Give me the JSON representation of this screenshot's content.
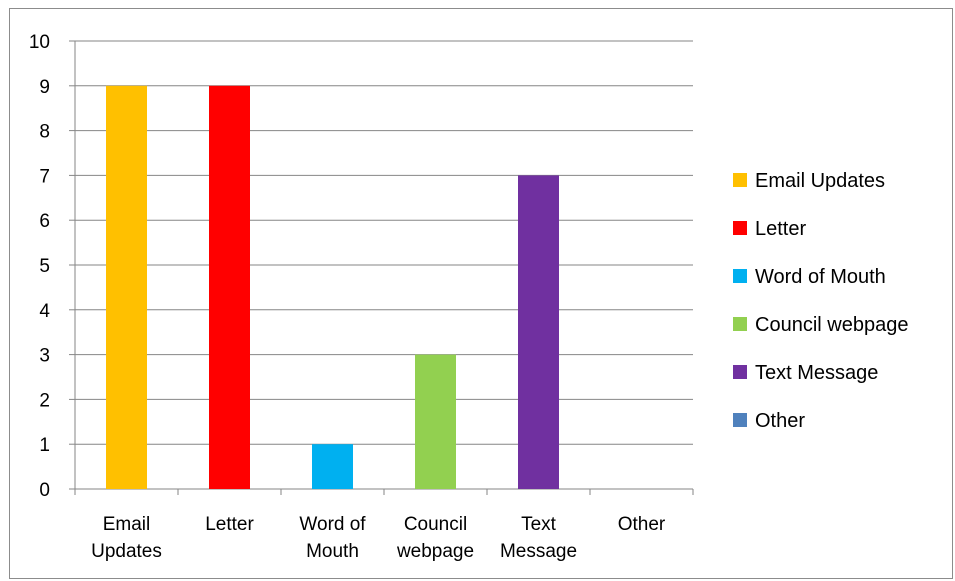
{
  "chart_data": {
    "type": "bar",
    "categories": [
      [
        "Email",
        "Updates"
      ],
      [
        "Letter"
      ],
      [
        "Word of",
        "Mouth"
      ],
      [
        "Council",
        "webpage"
      ],
      [
        "Text",
        "Message"
      ],
      [
        "Other"
      ]
    ],
    "values": [
      9,
      9,
      1,
      3,
      7,
      0
    ],
    "colors": [
      "#FFC000",
      "#FF0000",
      "#00B0F0",
      "#92D050",
      "#7030A0",
      "#4F81BD"
    ],
    "ylim": [
      0,
      10
    ],
    "yticks": [
      0,
      1,
      2,
      3,
      4,
      5,
      6,
      7,
      8,
      9,
      10
    ],
    "grid": true,
    "legend_position": "right",
    "legend": [
      "Email Updates",
      "Letter",
      "Word of Mouth",
      "Council webpage",
      "Text Message",
      "Other"
    ]
  }
}
